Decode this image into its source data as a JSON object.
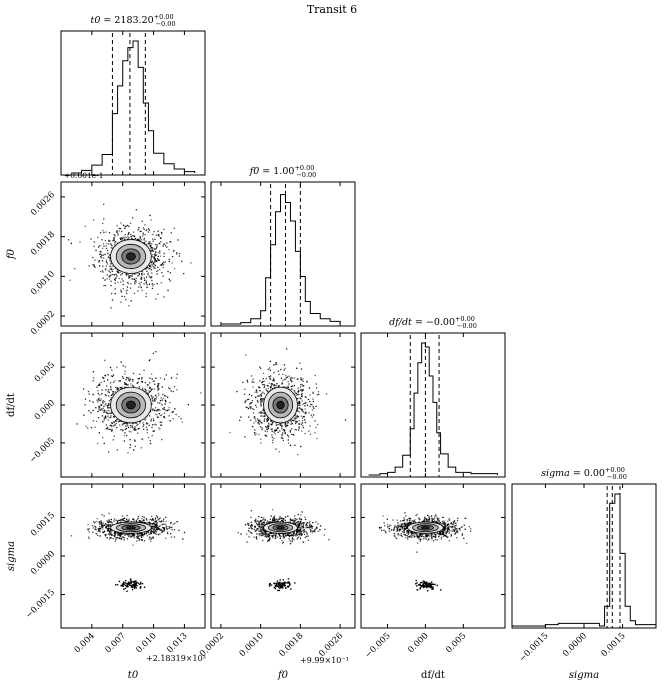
{
  "title": "Transit 6",
  "chart_data": [
    {
      "type": "histogram",
      "panel": "t0",
      "title_label": "t0",
      "title_value": "= 2183.20",
      "title_sup": "+0.00",
      "title_sub": "−0.00",
      "x": [
        0.002,
        0.003,
        0.004,
        0.005,
        0.006,
        0.0065,
        0.007,
        0.0075,
        0.008,
        0.0085,
        0.009,
        0.0095,
        0.01,
        0.011,
        0.012,
        0.013,
        0.014
      ],
      "y": [
        0,
        0.02,
        0.06,
        0.14,
        0.45,
        0.66,
        0.85,
        0.95,
        1.0,
        0.8,
        0.53,
        0.32,
        0.15,
        0.07,
        0.03,
        0.01,
        0
      ],
      "quantiles": [
        0.006,
        0.0077,
        0.0092
      ],
      "xlim": [
        0.001,
        0.015
      ],
      "offset_text_top": "+0.001e-1"
    },
    {
      "type": "histogram",
      "panel": "f0",
      "title_label": "f0",
      "title_value": "= 1.00",
      "title_sup": "+0.00",
      "title_sub": "−0.00",
      "x": [
        0.0002,
        0.0006,
        0.0008,
        0.001,
        0.0011,
        0.0012,
        0.0013,
        0.0014,
        0.0015,
        0.0016,
        0.0017,
        0.0018,
        0.0019,
        0.002,
        0.0022,
        0.0024,
        0.0026
      ],
      "y": [
        0,
        0.01,
        0.04,
        0.1,
        0.35,
        0.6,
        0.85,
        0.98,
        0.92,
        0.78,
        0.55,
        0.36,
        0.17,
        0.08,
        0.04,
        0.02,
        0
      ],
      "quantiles": [
        0.0012,
        0.0015,
        0.0018
      ],
      "xlim": [
        0.0,
        0.0029
      ]
    },
    {
      "type": "histogram",
      "panel": "df/dt",
      "title_label": "df/dt",
      "title_value": "= −0.00",
      "title_sup": "+0.00",
      "title_sub": "−0.00",
      "x": [
        -0.0075,
        -0.006,
        -0.005,
        -0.004,
        -0.003,
        -0.002,
        -0.0015,
        -0.001,
        -0.0005,
        0.0,
        0.0005,
        0.001,
        0.0015,
        0.002,
        0.003,
        0.004,
        0.006,
        0.0095
      ],
      "y": [
        0,
        0.01,
        0.02,
        0.06,
        0.15,
        0.35,
        0.62,
        0.85,
        1.0,
        0.97,
        0.75,
        0.55,
        0.32,
        0.16,
        0.06,
        0.02,
        0.01,
        0
      ],
      "quantiles": [
        -0.002,
        0.0,
        0.0018
      ],
      "xlim": [
        -0.0085,
        0.0105
      ]
    },
    {
      "type": "histogram",
      "panel": "sigma",
      "title_label": "sigma",
      "title_value": "= 0.00",
      "title_sup": "+0.00",
      "title_sub": "−0.00",
      "x": [
        -0.0028,
        -0.0015,
        -0.001,
        0.0006,
        0.0008,
        0.001,
        0.0012,
        0.0014,
        0.0016,
        0.0018,
        0.002,
        0.0028
      ],
      "y": [
        0,
        0.01,
        0.02,
        0.0,
        0.15,
        0.93,
        1.0,
        0.55,
        0.15,
        0.04,
        0.01,
        0
      ],
      "quantiles": [
        0.0009,
        0.0011,
        0.0014
      ],
      "xlim": [
        -0.0028,
        0.0028
      ]
    },
    {
      "type": "scatter",
      "panel": "t0 vs f0",
      "xlim": [
        0.001,
        0.015
      ],
      "ylim": [
        0.0,
        0.0029
      ],
      "center": [
        0.0078,
        0.0014
      ],
      "spread": [
        0.0032,
        0.00055
      ]
    },
    {
      "type": "scatter",
      "panel": "t0 vs df/dt",
      "xlim": [
        0.001,
        0.015
      ],
      "ylim": [
        -0.0095,
        0.0095
      ],
      "center": [
        0.0078,
        0.0
      ],
      "spread": [
        0.0032,
        0.0038
      ]
    },
    {
      "type": "scatter",
      "panel": "f0 vs df/dt",
      "xlim": [
        0.0,
        0.0029
      ],
      "ylim": [
        -0.0095,
        0.0095
      ],
      "center": [
        0.0014,
        0.0
      ],
      "spread": [
        0.00055,
        0.0038
      ]
    },
    {
      "type": "scatter",
      "panel": "t0 vs sigma",
      "xlim": [
        0.001,
        0.015
      ],
      "ylim": [
        -0.0028,
        0.0028
      ],
      "center": [
        0.0078,
        0.0011
      ],
      "spread": [
        0.0032,
        0.00035
      ],
      "secondary_center": [
        0.0078,
        -0.0011
      ]
    },
    {
      "type": "scatter",
      "panel": "f0 vs sigma",
      "xlim": [
        0.0,
        0.0029
      ],
      "ylim": [
        -0.0028,
        0.0028
      ],
      "center": [
        0.0014,
        0.0011
      ],
      "spread": [
        0.00055,
        0.00035
      ],
      "secondary_center": [
        0.0014,
        -0.0011
      ]
    },
    {
      "type": "scatter",
      "panel": "df/dt vs sigma",
      "xlim": [
        -0.0085,
        0.0105
      ],
      "ylim": [
        -0.0028,
        0.0028
      ],
      "center": [
        0.0,
        0.0011
      ],
      "spread": [
        0.0038,
        0.00035
      ],
      "secondary_center": [
        0.0,
        -0.0011
      ]
    }
  ],
  "axes": {
    "xlabels": [
      "t0",
      "f0",
      "df/dt",
      "sigma"
    ],
    "ylabels": [
      "f0",
      "df/dt",
      "sigma"
    ],
    "t0_ticks": [
      "0.004",
      "0.007",
      "0.010",
      "0.013"
    ],
    "t0_tick_values": [
      0.004,
      0.007,
      0.01,
      0.013
    ],
    "t0_offset": "+2.18319×10³",
    "f0_ticks": [
      "0.0002",
      "0.0010",
      "0.0018",
      "0.0026"
    ],
    "f0_tick_values": [
      0.0002,
      0.001,
      0.0018,
      0.0026
    ],
    "f0_offset": "+9.99×10⁻¹",
    "dfdt_ticks": [
      "−0.005",
      "0.000",
      "0.005"
    ],
    "dfdt_tick_values": [
      -0.005,
      0.0,
      0.005
    ],
    "sigma_ticks": [
      "−0.0015",
      "0.0000",
      "0.0015"
    ],
    "sigma_tick_values": [
      -0.0015,
      0.0,
      0.0015
    ]
  }
}
